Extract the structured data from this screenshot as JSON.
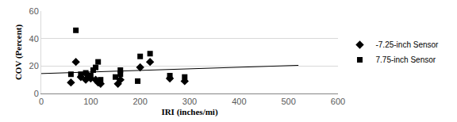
{
  "chart_data": {
    "type": "scatter",
    "x_label": "IRI (inches/mi)",
    "y_label": "COV (Percent)",
    "xlim": [
      0,
      600
    ],
    "xticks": [
      0,
      100,
      200,
      300,
      400,
      500,
      600
    ],
    "ylim": [
      0,
      60
    ],
    "yticks": [
      0,
      20,
      40,
      60
    ],
    "grid": true,
    "legend": "right",
    "series": [
      {
        "name": "-7.25-inch Sensor",
        "color": "#000000",
        "marker": "diamond",
        "x": [
          60,
          70,
          80,
          90,
          95,
          100,
          110,
          115,
          120,
          155,
          160,
          200,
          220,
          260,
          290
        ],
        "values": [
          8,
          23,
          12,
          10,
          13,
          11,
          10,
          8,
          7,
          7,
          10,
          19,
          23,
          11,
          9
        ]
      },
      {
        "name": "7.75-inch Sensor",
        "color": "#000000",
        "marker": "square",
        "x": [
          60,
          70,
          80,
          90,
          100,
          105,
          110,
          115,
          120,
          150,
          160,
          160,
          195,
          200,
          220,
          260,
          290
        ],
        "values": [
          14,
          46,
          14,
          15,
          13,
          17,
          19,
          23,
          10,
          12,
          17,
          14,
          9,
          27,
          29,
          13,
          12
        ]
      }
    ],
    "trendline": {
      "x": [
        0,
        520
      ],
      "values": [
        14.5,
        20.5
      ],
      "color": "#000000"
    }
  }
}
